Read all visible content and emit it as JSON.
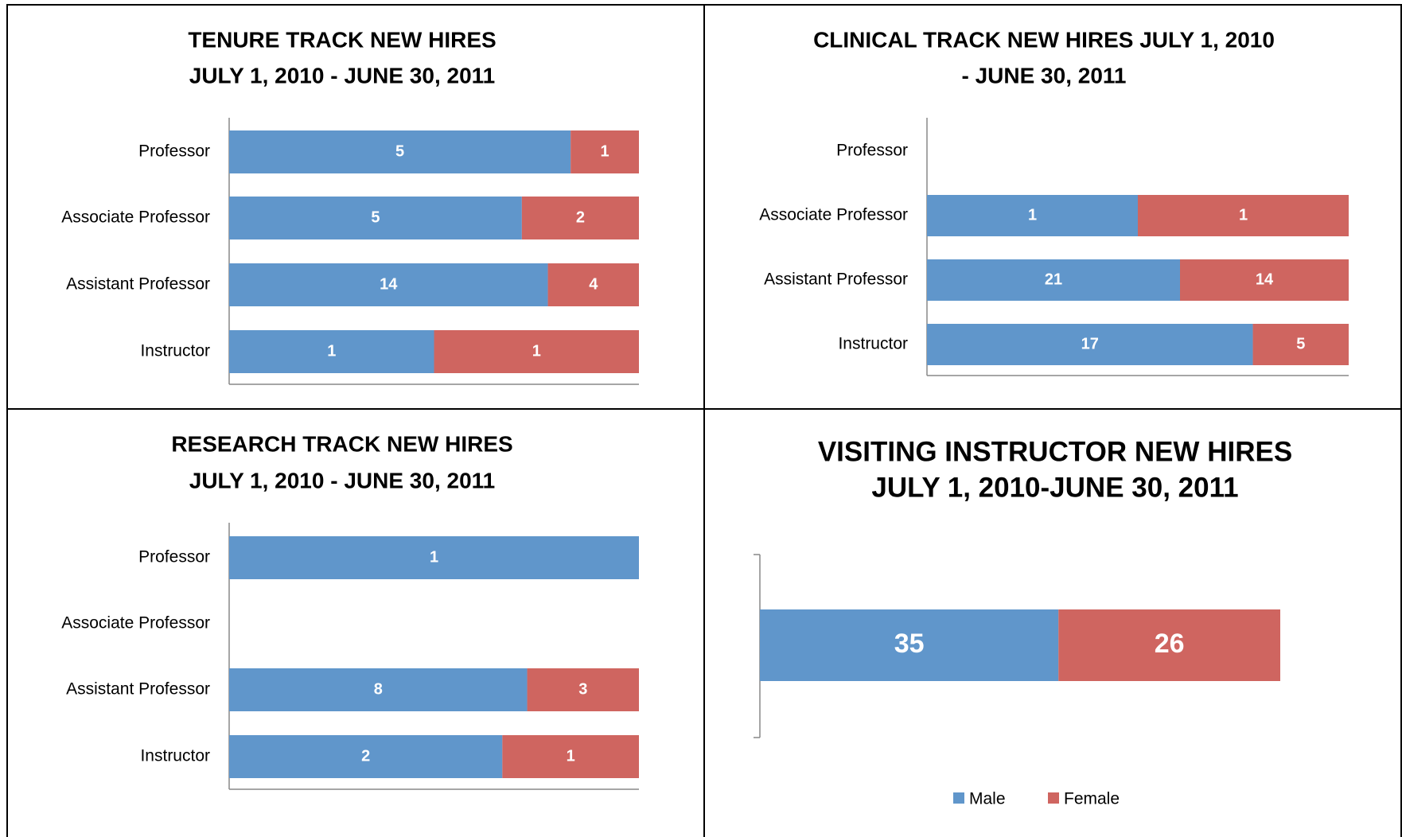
{
  "chart_data": [
    {
      "type": "bar",
      "orientation": "horizontal",
      "stacked": "percent",
      "title": [
        "TENURE TRACK NEW HIRES",
        "JULY 1, 2010 - JUNE 30, 2011"
      ],
      "categories": [
        "Professor",
        "Associate Professor",
        "Assistant Professor",
        "Instructor"
      ],
      "series": [
        {
          "color": "#6096cb",
          "values": [
            5,
            5,
            14,
            1
          ]
        },
        {
          "color": "#cf6560",
          "values": [
            1,
            2,
            4,
            1
          ]
        }
      ]
    },
    {
      "type": "bar",
      "orientation": "horizontal",
      "stacked": "percent",
      "title": [
        "CLINICAL TRACK NEW HIRES JULY 1, 2010",
        "- JUNE 30, 2011"
      ],
      "categories": [
        "Professor",
        "Associate Professor",
        "Assistant Professor",
        "Instructor"
      ],
      "series": [
        {
          "color": "#6096cb",
          "values": [
            null,
            1,
            21,
            17
          ]
        },
        {
          "color": "#cf6560",
          "values": [
            null,
            1,
            14,
            5
          ]
        }
      ]
    },
    {
      "type": "bar",
      "orientation": "horizontal",
      "stacked": "percent",
      "title": [
        "RESEARCH TRACK NEW HIRES",
        "JULY 1, 2010 - JUNE 30, 2011"
      ],
      "categories": [
        "Professor",
        "Associate Professor",
        "Assistant Professor",
        "Instructor"
      ],
      "series": [
        {
          "color": "#6096cb",
          "values": [
            1,
            null,
            8,
            2
          ]
        },
        {
          "color": "#cf6560",
          "values": [
            null,
            null,
            3,
            1
          ]
        }
      ]
    },
    {
      "type": "bar",
      "orientation": "horizontal",
      "stacked": "percent",
      "title": [
        "VISITING INSTRUCTOR NEW HIRES",
        "JULY 1, 2010-JUNE 30, 2011"
      ],
      "categories": [
        null
      ],
      "legend": "bottom",
      "series": [
        {
          "name": "Male",
          "color": "#6096cb",
          "values": [
            35
          ]
        },
        {
          "name": "Female",
          "color": "#cf6560",
          "values": [
            26
          ]
        }
      ]
    }
  ]
}
